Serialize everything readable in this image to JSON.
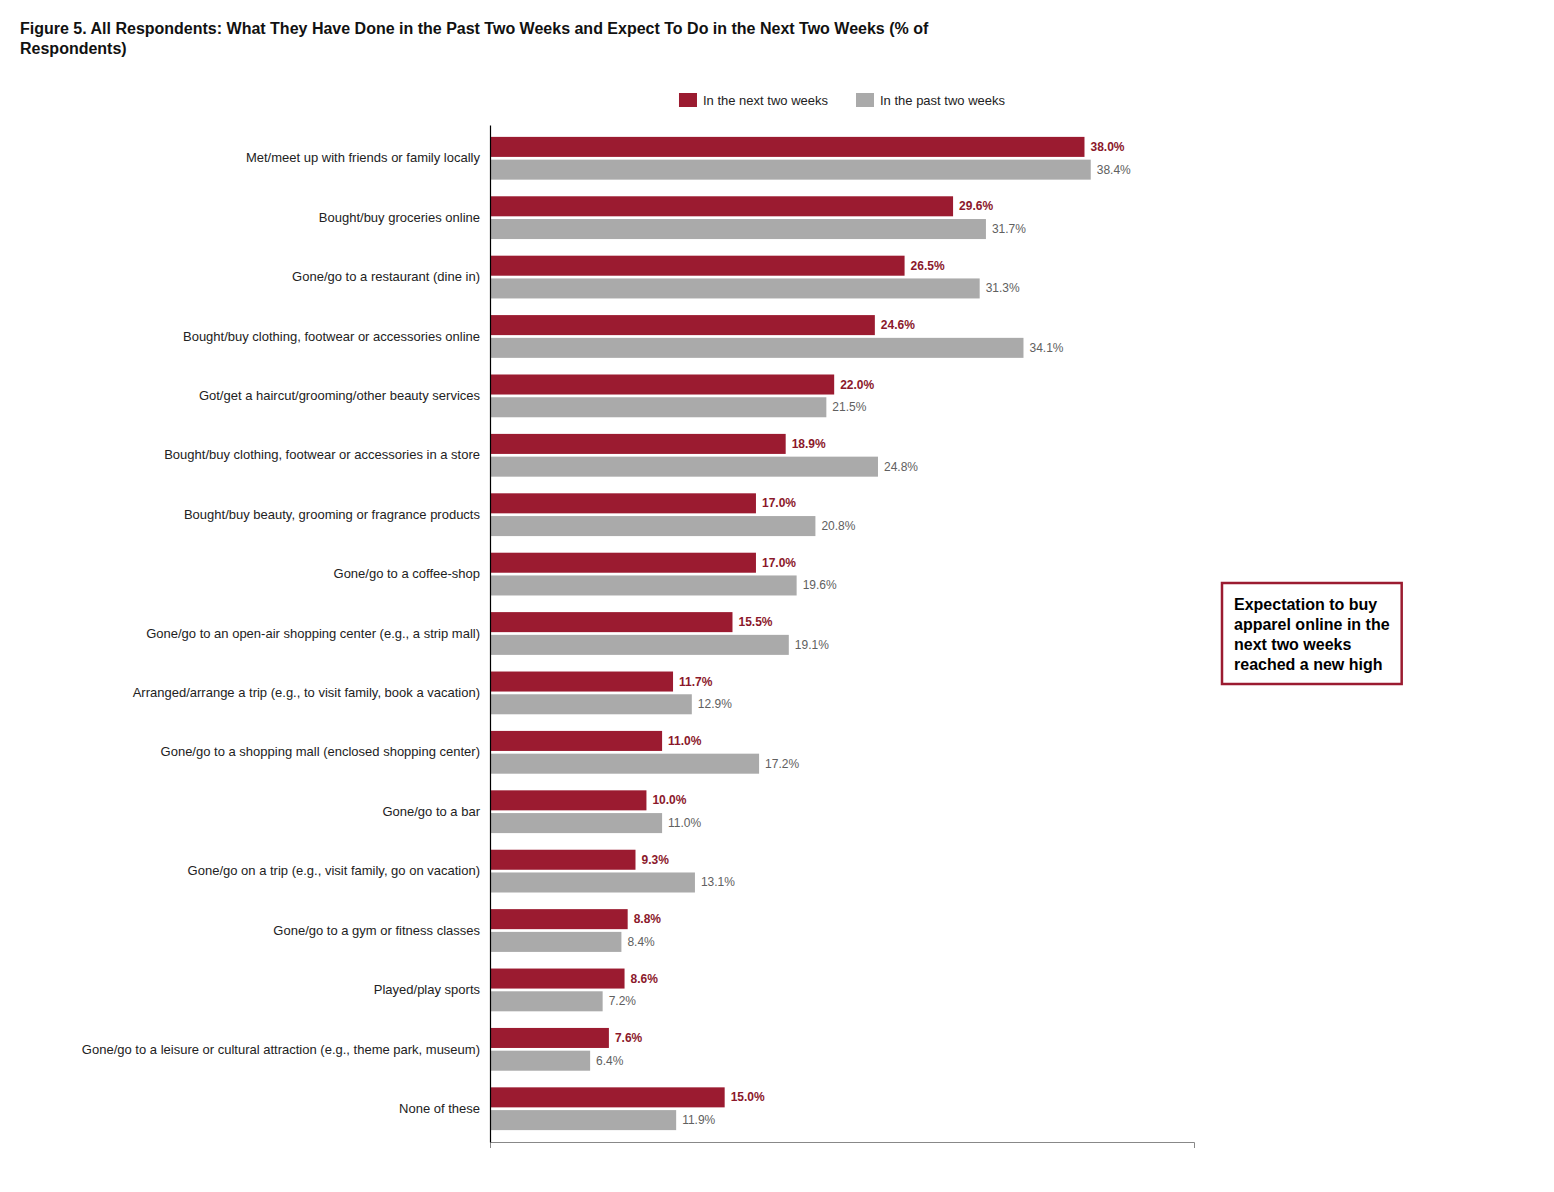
{
  "chart_data": {
    "type": "bar",
    "orientation": "horizontal",
    "title": "Figure 5. All Respondents: What They Have Done in the Past Two Weeks and Expect To Do in the Next Two Weeks (% of\nRespondents)",
    "categories": [
      "Met/meet up with friends or family locally",
      "Bought/buy groceries online",
      "Gone/go to a restaurant (dine in)",
      "Bought/buy clothing, footwear or accessories online",
      "Got/get a haircut/grooming/other beauty services",
      "Bought/buy clothing, footwear or accessories in a store",
      "Bought/buy beauty, grooming or fragrance products",
      "Gone/go to a coffee-shop",
      "Gone/go to an open-air shopping center (e.g., a strip mall)",
      "Arranged/arrange a trip (e.g., to visit family, book a vacation)",
      "Gone/go to a shopping mall (enclosed shopping center)",
      "Gone/go to a bar",
      "Gone/go on a trip (e.g., visit family, go on vacation)",
      "Gone/go to a gym or fitness classes",
      "Played/play sports",
      "Gone/go to a leisure or cultural attraction (e.g., theme park, museum)",
      "None of these"
    ],
    "series": [
      {
        "name": "In the next two weeks",
        "color": "#9B1B30",
        "values": [
          38.0,
          29.6,
          26.5,
          24.6,
          22.0,
          18.9,
          17.0,
          17.0,
          15.5,
          11.7,
          11.0,
          10.0,
          9.3,
          8.8,
          8.6,
          7.6,
          15.0
        ],
        "value_labels": [
          "38.0%",
          "29.6%",
          "26.5%",
          "24.6%",
          "22.0%",
          "18.9%",
          "17.0%",
          "17.0%",
          "15.5%",
          "11.7%",
          "11.0%",
          "10.0%",
          "9.3%",
          "8.8%",
          "8.6%",
          "7.6%",
          "15.0%"
        ]
      },
      {
        "name": "In the past two weeks",
        "color": "#AAAAAA",
        "values": [
          38.4,
          31.7,
          31.3,
          34.1,
          21.5,
          24.8,
          20.8,
          19.6,
          19.1,
          12.9,
          17.2,
          11.0,
          13.1,
          8.4,
          7.2,
          6.4,
          11.9
        ],
        "value_labels": [
          "38.4%",
          "31.7%",
          "31.3%",
          "34.1%",
          "21.5%",
          "24.8%",
          "20.8%",
          "19.6%",
          "19.1%",
          "12.9%",
          "17.2%",
          "11.0%",
          "13.1%",
          "8.4%",
          "7.2%",
          "6.4%",
          "11.9%"
        ]
      }
    ],
    "xlim": [
      0,
      45
    ],
    "xticks": [],
    "tick_labels": "y",
    "grid": false,
    "legend": "top",
    "data_labels": true,
    "annotation": "Expectation to buy\napparel online in the\nnext two weeks\nreached a new high"
  }
}
